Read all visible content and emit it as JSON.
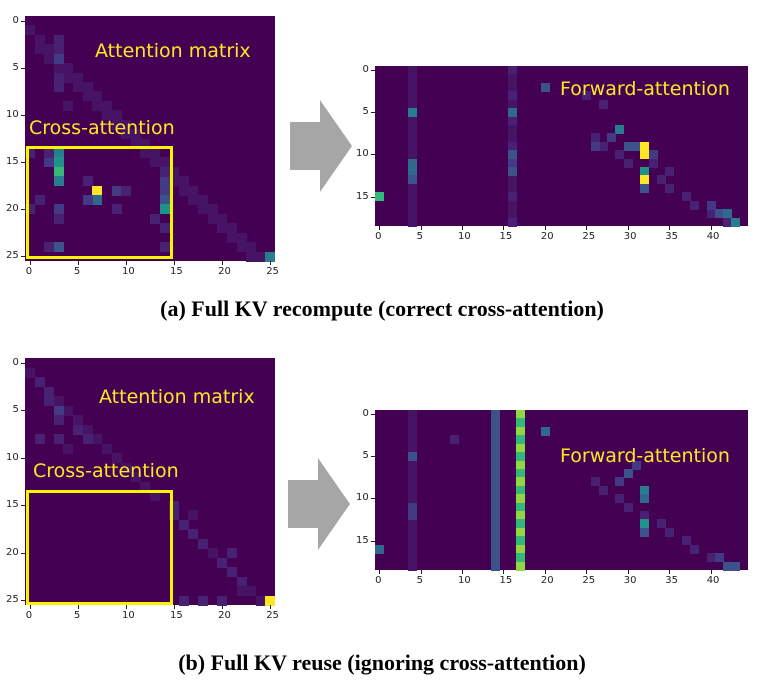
{
  "colors": {
    "background": "#440154",
    "highlight": "#fde725",
    "box": "#f5f500",
    "arrow": "#a6a6a6"
  },
  "panel_a": {
    "caption": "(a) Full KV recompute (correct cross-attention)",
    "left": {
      "title": "Attention matrix",
      "box_label": "Cross-attention",
      "x_ticks": [
        "0",
        "5",
        "10",
        "15",
        "20",
        "25"
      ],
      "y_ticks": [
        "0",
        "5",
        "10",
        "15",
        "20",
        "25"
      ]
    },
    "right": {
      "title": "Forward-attention",
      "x_ticks": [
        "0",
        "5",
        "10",
        "15",
        "20",
        "25",
        "30",
        "35",
        "40"
      ],
      "y_ticks": [
        "0",
        "5",
        "10",
        "15"
      ]
    }
  },
  "panel_b": {
    "caption": "(b) Full KV reuse (ignoring cross-attention)",
    "left": {
      "title": "Attention matrix",
      "box_label": "Cross-attention",
      "x_ticks": [
        "0",
        "5",
        "10",
        "15",
        "20",
        "25"
      ],
      "y_ticks": [
        "0",
        "5",
        "10",
        "15",
        "20",
        "25"
      ]
    },
    "right": {
      "title": "Forward-attention",
      "x_ticks": [
        "0",
        "5",
        "10",
        "15",
        "20",
        "25",
        "30",
        "35",
        "40"
      ],
      "y_ticks": [
        "0",
        "5",
        "10",
        "15"
      ]
    }
  },
  "icons": {
    "arrow": "right-arrow-icon"
  }
}
